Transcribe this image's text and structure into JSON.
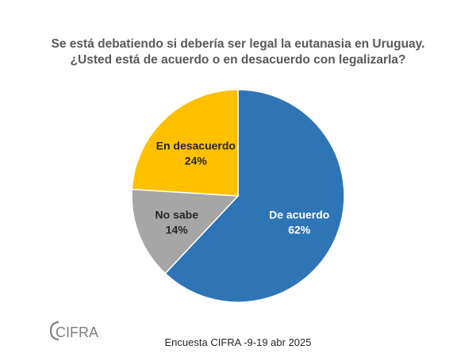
{
  "title_line1": "Se está debatiendo si debería ser legal la eutanasia en Uruguay.",
  "title_line2": "¿Usted está de acuerdo o en desacuerdo con legalizarla?",
  "source": "Encuesta CIFRA -9-19 abr 2025",
  "logo_text": "CIFRA",
  "colors": {
    "de_acuerdo": "#2E75B6",
    "no_sabe": "#A6A6A6",
    "en_desacuerdo": "#FFC000",
    "border": "#ffffff"
  },
  "chart_data": {
    "type": "pie",
    "categories": [
      "De acuerdo",
      "No sabe",
      "En desacuerdo"
    ],
    "values": [
      62,
      14,
      24
    ],
    "labels": [
      "62%",
      "14%",
      "24%"
    ],
    "colors": [
      "#2E75B6",
      "#A6A6A6",
      "#FFC000"
    ],
    "label_colors": [
      "#ffffff",
      "#262626",
      "#262626"
    ],
    "start_angle_deg": 0,
    "direction": "clockwise"
  }
}
